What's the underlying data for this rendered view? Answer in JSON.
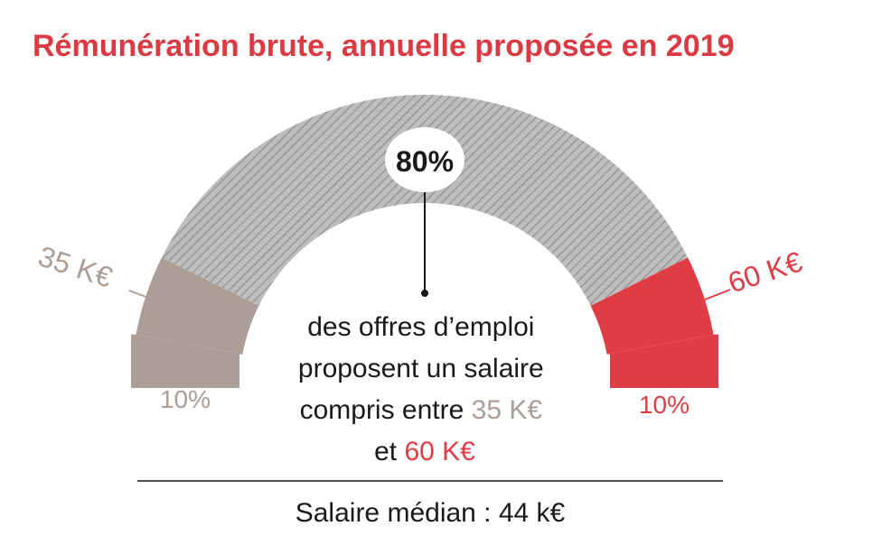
{
  "chart_data": {
    "type": "pie",
    "title": "Rémunération brute, annuelle proposée en 2019",
    "segments": [
      {
        "label": "10%",
        "value": 10,
        "color": "#ab9e97",
        "pattern": "solid"
      },
      {
        "label": "80%",
        "value": 80,
        "color": "#b3b3b3",
        "pattern": "hatched"
      },
      {
        "label": "10%",
        "value": 10,
        "color": "#e03c45",
        "pattern": "solid"
      }
    ],
    "boundaries": [
      {
        "label": "35 K€",
        "color": "#ab9e97"
      },
      {
        "label": "60 K€",
        "color": "#e03c45"
      }
    ],
    "center_text": {
      "line1": "des offres d’emploi",
      "line2": "proposent un salaire",
      "line3_prefix": "compris entre ",
      "line3_value": "35 K€",
      "line4_prefix": "et ",
      "line4_value": "60 K€"
    },
    "footer": "Salaire médian : 44 k€"
  },
  "colors": {
    "title": "#dc3a43",
    "low": "#ab9e97",
    "high": "#e03c45",
    "text": "#1a1a1a"
  }
}
